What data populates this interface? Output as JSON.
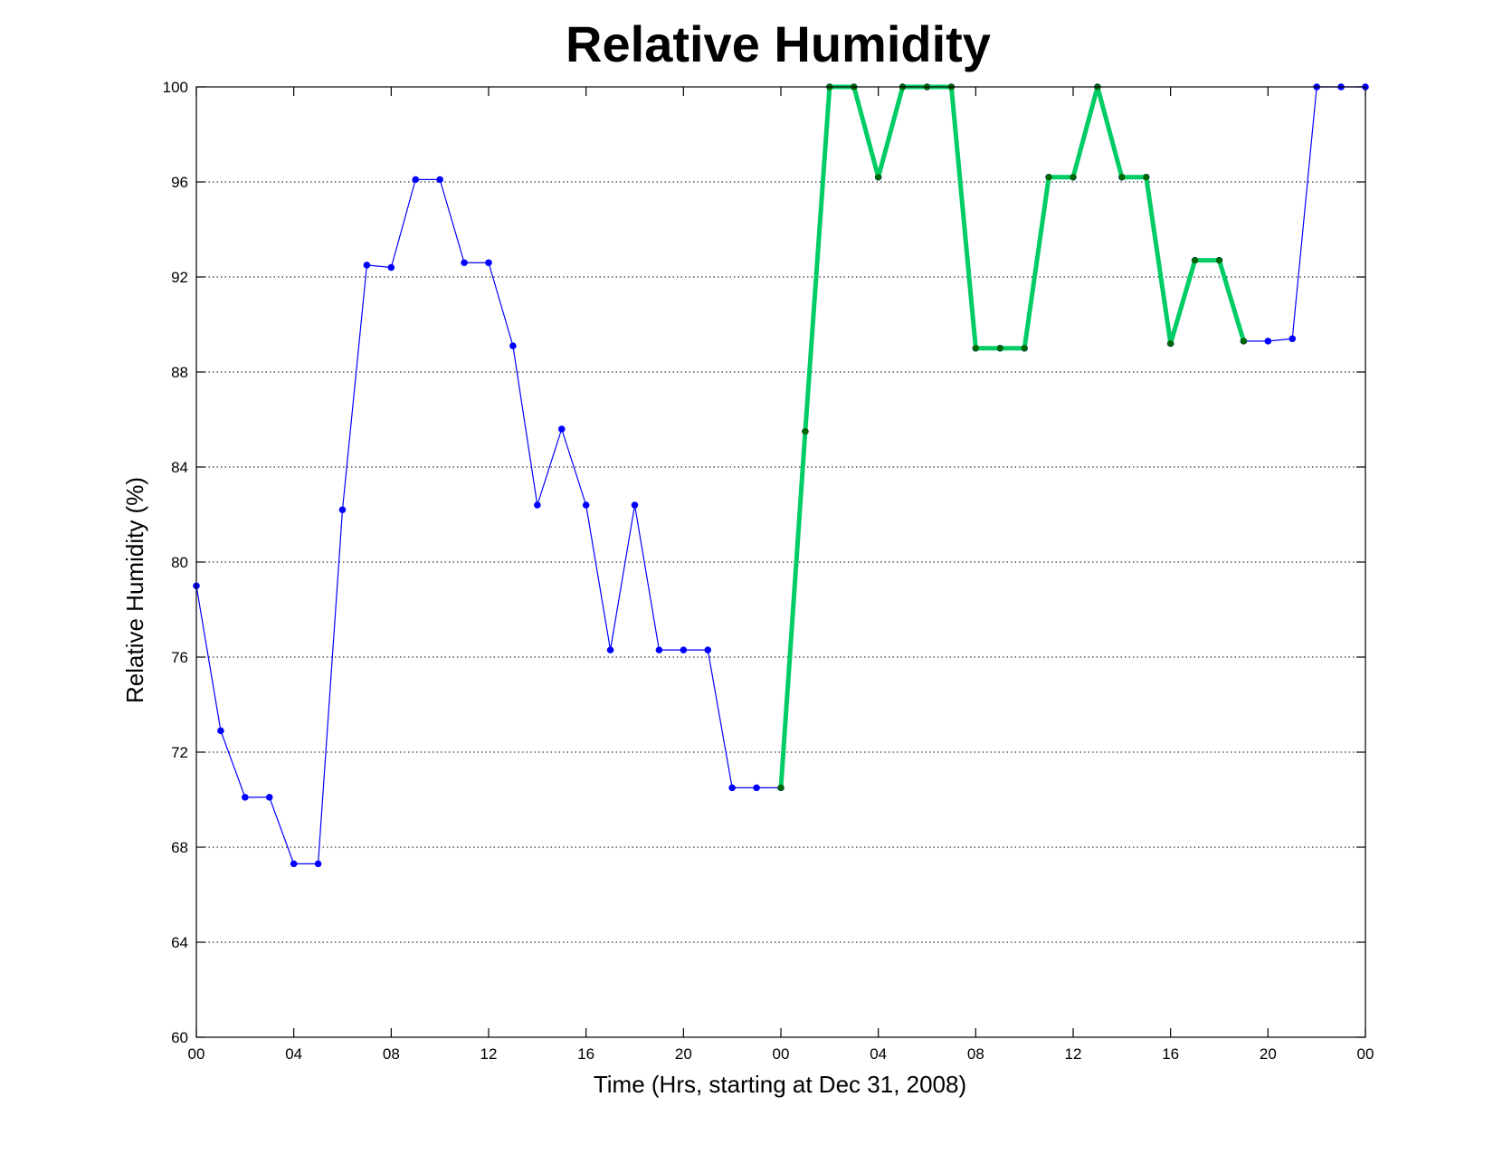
{
  "chart_data": {
    "type": "line",
    "title": "Relative Humidity",
    "xlabel": "Time (Hrs, starting at Dec 31, 2008)",
    "ylabel": "Relative Humidity (%)",
    "xlim": [
      0,
      48
    ],
    "ylim": [
      60,
      100
    ],
    "x_ticks": [
      0,
      4,
      8,
      12,
      16,
      20,
      24,
      28,
      32,
      36,
      40,
      44,
      48
    ],
    "x_tick_labels": [
      "00",
      "04",
      "08",
      "12",
      "16",
      "20",
      "00",
      "04",
      "08",
      "12",
      "16",
      "20",
      "00"
    ],
    "y_ticks": [
      60,
      64,
      68,
      72,
      76,
      80,
      84,
      88,
      92,
      96,
      100
    ],
    "y_tick_labels": [
      "60",
      "64",
      "68",
      "72",
      "76",
      "80",
      "84",
      "88",
      "92",
      "96",
      "100"
    ],
    "grid": "y-dotted",
    "legend": "none",
    "series": [
      {
        "style": "thin",
        "color": "#0000ff",
        "marker_color": "#0000ff",
        "x": [
          0,
          1,
          2,
          3,
          4,
          5,
          6,
          7,
          8,
          9,
          10,
          11,
          12,
          13,
          14,
          15,
          16,
          17,
          18,
          19,
          20,
          21,
          22,
          23,
          24,
          25,
          26,
          27,
          28,
          29,
          30,
          31,
          32,
          33,
          34,
          35,
          36,
          37,
          38,
          39,
          40,
          41,
          42,
          43,
          44,
          45,
          46,
          47,
          48
        ],
        "y": [
          79.0,
          72.9,
          70.1,
          70.1,
          67.3,
          67.3,
          82.2,
          92.5,
          92.4,
          96.1,
          96.1,
          92.6,
          92.6,
          89.1,
          82.4,
          85.6,
          82.4,
          76.3,
          82.4,
          76.3,
          76.3,
          76.3,
          70.5,
          70.5,
          70.5,
          85.5,
          100,
          100,
          96.2,
          100,
          100,
          100,
          89.0,
          89.0,
          89.0,
          96.2,
          96.2,
          100,
          96.2,
          96.2,
          89.2,
          92.7,
          92.7,
          89.3,
          89.3,
          89.4,
          100,
          100,
          100
        ]
      },
      {
        "style": "thick",
        "color": "#00cc66",
        "marker_color": "#006600",
        "x": [
          24,
          25,
          26,
          27,
          28,
          29,
          30,
          31,
          32,
          33,
          34,
          35,
          36,
          37,
          38,
          39,
          40,
          41,
          42,
          43
        ],
        "y": [
          70.5,
          85.5,
          100,
          100,
          96.2,
          100,
          100,
          100,
          89.0,
          89.0,
          89.0,
          96.2,
          96.2,
          100,
          96.2,
          96.2,
          89.2,
          92.7,
          92.7,
          89.3
        ]
      }
    ]
  }
}
